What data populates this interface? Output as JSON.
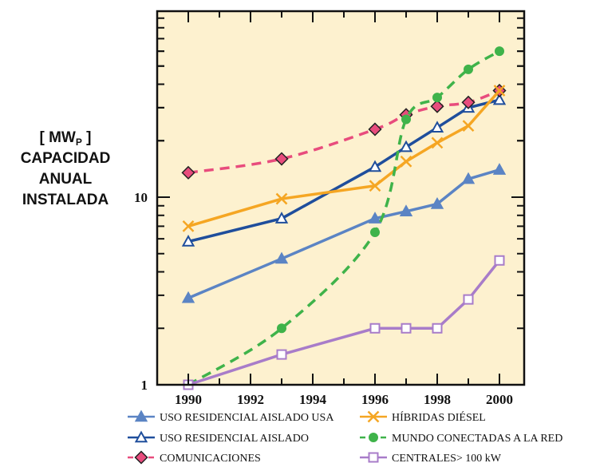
{
  "chart_data": {
    "type": "line",
    "ylabel": [
      "[ MWP ]",
      "CAPACIDAD",
      "ANUAL",
      "INSTALADA"
    ],
    "yscale": "log",
    "ylim": [
      1,
      60
    ],
    "xlim": [
      1989,
      2001
    ],
    "x_ticks": [
      1990,
      1992,
      1994,
      1996,
      1998,
      2000
    ],
    "y_tick_labels": [
      "1",
      "10"
    ],
    "grid": false,
    "legend_position": "bottom",
    "series": [
      {
        "name": "USO RESIDENCIAL AISLADO USA",
        "color": "#5b84c4",
        "dash": "solid",
        "marker": "triangle",
        "x": [
          1990,
          1993,
          1996,
          1997,
          1998,
          1999,
          2000
        ],
        "y": [
          2.9,
          4.7,
          7.7,
          8.4,
          9.2,
          12.5,
          14
        ]
      },
      {
        "name": "USO RESIDENCIAL AISLADO",
        "color": "#1f4e9c",
        "dash": "solid",
        "marker": "triangle-open",
        "x": [
          1990,
          1993,
          1996,
          1997,
          1998,
          1999,
          2000
        ],
        "y": [
          5.8,
          7.7,
          14.5,
          18.5,
          23.5,
          30,
          33
        ]
      },
      {
        "name": "COMUNICACIONES",
        "color": "#e84c7d",
        "dash": "dash",
        "marker": "diamond",
        "x": [
          1990,
          1993,
          1996,
          1997,
          1998,
          1999,
          2000
        ],
        "y": [
          13.5,
          16,
          23,
          27.5,
          30.5,
          32,
          37
        ]
      },
      {
        "name": "HÍBRIDAS DIÉSEL",
        "color": "#f5a623",
        "dash": "solid",
        "marker": "x",
        "x": [
          1990,
          1993,
          1996,
          1997,
          1998,
          1999,
          2000
        ],
        "y": [
          7,
          9.8,
          11.5,
          15.5,
          19.5,
          24,
          37
        ]
      },
      {
        "name": "MUNDO CONECTADAS A LA RED",
        "color": "#3fb34a",
        "dash": "dash",
        "marker": "circle",
        "x": [
          1990,
          1993,
          1996,
          1997,
          1998,
          1999,
          2000
        ],
        "y": [
          1,
          2,
          6.5,
          26,
          34,
          48,
          60
        ]
      },
      {
        "name": "CENTRALES> 100 kW",
        "color": "#a87cc9",
        "dash": "solid",
        "marker": "square-open",
        "x": [
          1990,
          1993,
          1996,
          1997,
          1998,
          1999,
          2000
        ],
        "y": [
          1,
          1.45,
          2,
          2,
          2,
          2.85,
          4.6
        ]
      }
    ]
  }
}
